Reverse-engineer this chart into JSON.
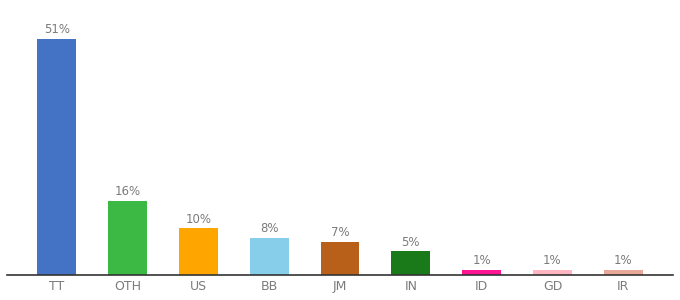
{
  "categories": [
    "TT",
    "OTH",
    "US",
    "BB",
    "JM",
    "IN",
    "ID",
    "GD",
    "IR"
  ],
  "values": [
    51,
    16,
    10,
    8,
    7,
    5,
    1,
    1,
    1
  ],
  "bar_colors": [
    "#4472C4",
    "#3CB844",
    "#FFA500",
    "#87CEEB",
    "#B8601A",
    "#1A7A1A",
    "#FF1493",
    "#FFB6C1",
    "#E8A898"
  ],
  "title": "",
  "label_fontsize": 9,
  "value_fontsize": 8.5,
  "ylim": [
    0,
    58
  ],
  "background_color": "#ffffff"
}
